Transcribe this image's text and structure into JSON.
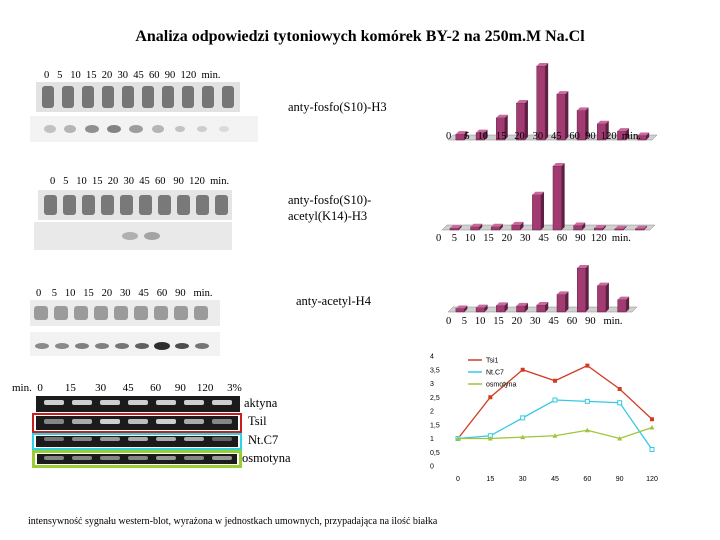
{
  "title": "Analiza odpowiedzi tytoniowych komórek BY-2 na 250m.M Na.Cl",
  "panels": [
    {
      "blot_lanes": "0   5   10  15  20  30  45  60  90  120  min.",
      "antibody": "anty-fosfo(S10)-H3",
      "chart_axis": "0     5   10   15   20   30   45   60  90  120  min.",
      "chart_values": [
        0.08,
        0.1,
        0.3,
        0.5,
        1.0,
        0.62,
        0.4,
        0.22,
        0.12,
        0.06
      ]
    },
    {
      "blot_lanes": "0   5   10  15  20  30  45  60   90  120  min.",
      "antibody_line1": "anty-fosfo(S10)-",
      "antibody_line2": "acetyl(K14)-H3",
      "chart_axis": "0    5   10   15   20   30   45   60   90  120  min.",
      "chart_values": [
        0.03,
        0.05,
        0.05,
        0.08,
        0.55,
        1.0,
        0.07,
        0.03,
        0.02,
        0.02
      ]
    },
    {
      "blot_lanes": "0    5   10   15   20   30   45   60   90   min.",
      "antibody": "anty-acetyl-H4",
      "chart_axis": "0    5   10   15   20   30   45   60   90   min.",
      "chart_values": [
        0.08,
        0.1,
        0.15,
        0.14,
        0.16,
        0.4,
        1.0,
        0.6,
        0.28
      ]
    }
  ],
  "gel": {
    "lanes": "min.  0        15       30      45      60     90    120     3%",
    "rows": [
      {
        "label": "aktyna",
        "border": "none"
      },
      {
        "label": "Tsil",
        "border": "#c81e1e"
      },
      {
        "label": "Nt.C7",
        "border": "#2fd3e6"
      },
      {
        "label": "osmotyna",
        "border": "#9acc33"
      }
    ]
  },
  "chart_data": [
    {
      "type": "bar",
      "categories": [
        "0",
        "5",
        "10",
        "15",
        "20",
        "30",
        "45",
        "60",
        "90",
        "120"
      ],
      "values": [
        0.08,
        0.1,
        0.3,
        0.5,
        1.0,
        0.62,
        0.4,
        0.22,
        0.12,
        0.06
      ],
      "xlabel": "min.",
      "color": "#a23b72"
    },
    {
      "type": "bar",
      "categories": [
        "0",
        "5",
        "10",
        "15",
        "20",
        "30",
        "45",
        "60",
        "90",
        "120"
      ],
      "values": [
        0.03,
        0.05,
        0.05,
        0.08,
        0.55,
        1.0,
        0.07,
        0.03,
        0.02,
        0.02
      ],
      "xlabel": "min.",
      "color": "#a23b72"
    },
    {
      "type": "bar",
      "categories": [
        "0",
        "5",
        "10",
        "15",
        "20",
        "30",
        "45",
        "60",
        "90"
      ],
      "values": [
        0.08,
        0.1,
        0.15,
        0.14,
        0.16,
        0.4,
        1.0,
        0.6,
        0.28
      ],
      "xlabel": "min.",
      "color": "#a23b72"
    },
    {
      "type": "line",
      "categories": [
        "0",
        "15",
        "30",
        "45",
        "60",
        "90",
        "120"
      ],
      "y_ticks": [
        "0",
        "0,5",
        "1",
        "1,5",
        "2",
        "2,5",
        "3",
        "3,5",
        "4"
      ],
      "ylim": [
        0,
        4
      ],
      "series": [
        {
          "name": "Tsi1",
          "color": "#d23b22",
          "values": [
            1.0,
            2.5,
            3.5,
            3.1,
            3.65,
            2.8,
            1.7
          ]
        },
        {
          "name": "Nt.C7",
          "color": "#37c8e8",
          "values": [
            1.0,
            1.1,
            1.75,
            2.4,
            2.35,
            2.3,
            0.6
          ]
        },
        {
          "name": "osmotyna",
          "color": "#9fc53a",
          "values": [
            1.0,
            1.0,
            1.05,
            1.1,
            1.3,
            1.0,
            1.4
          ]
        }
      ]
    }
  ],
  "footer": "intensywność sygnału western-blot, wyrażona w jednostkach umownych, przypadająca na ilość białka"
}
